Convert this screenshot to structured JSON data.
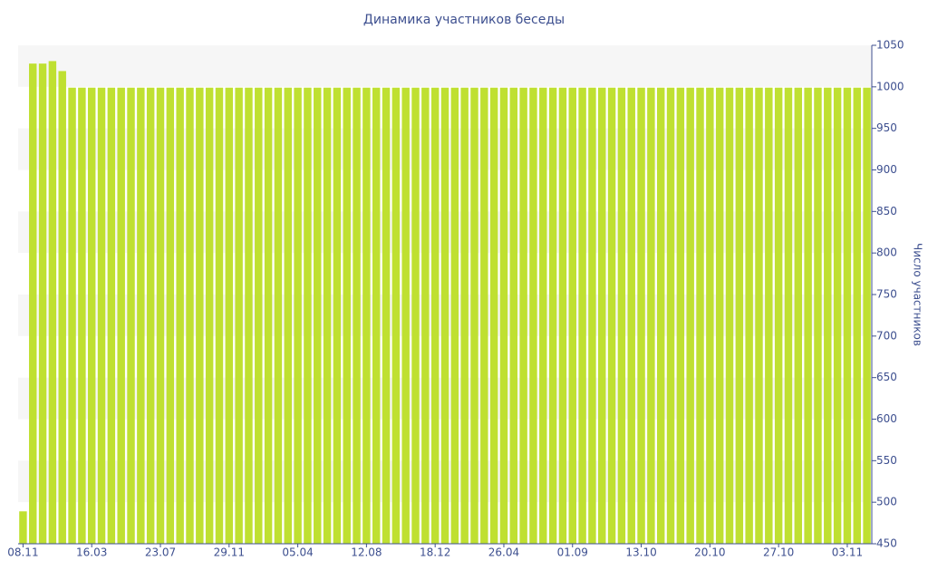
{
  "chart_data": {
    "type": "bar",
    "title": "Динамика участников беседы",
    "y_axis_label": "Число участников",
    "categories": [
      "08.11",
      null,
      null,
      null,
      null,
      null,
      null,
      "16.03",
      null,
      null,
      null,
      null,
      null,
      null,
      "23.07",
      null,
      null,
      null,
      null,
      null,
      null,
      "29.11",
      null,
      null,
      null,
      null,
      null,
      null,
      "05.04",
      null,
      null,
      null,
      null,
      null,
      null,
      "12.08",
      null,
      null,
      null,
      null,
      null,
      null,
      "18.12",
      null,
      null,
      null,
      null,
      null,
      null,
      "26.04",
      null,
      null,
      null,
      null,
      null,
      null,
      "01.09",
      null,
      null,
      null,
      null,
      null,
      null,
      "13.10",
      null,
      null,
      null,
      null,
      null,
      null,
      "20.10",
      null,
      null,
      null,
      null,
      null,
      null,
      "27.10",
      null,
      null,
      null,
      null,
      null,
      null,
      "03.11",
      null,
      null
    ],
    "values": [
      489,
      1028,
      1028,
      1031,
      1019,
      999,
      999,
      999,
      999,
      999,
      999,
      999,
      999,
      999,
      999,
      999,
      999,
      999,
      999,
      999,
      999,
      999,
      999,
      999,
      999,
      999,
      999,
      999,
      999,
      999,
      999,
      999,
      999,
      999,
      999,
      999,
      999,
      999,
      999,
      999,
      999,
      999,
      999,
      999,
      999,
      999,
      999,
      999,
      999,
      999,
      999,
      999,
      999,
      999,
      999,
      999,
      999,
      999,
      999,
      999,
      999,
      999,
      999,
      999,
      999,
      999,
      999,
      999,
      999,
      999,
      999,
      999,
      999,
      999,
      999,
      999,
      999,
      999,
      999,
      999,
      999,
      999,
      999,
      999,
      999,
      999,
      999
    ],
    "color": "#bfe031",
    "ylim": [
      450,
      1050
    ],
    "yticks": [
      450,
      500,
      550,
      600,
      650,
      700,
      750,
      800,
      850,
      900,
      950,
      1000,
      1050
    ],
    "y_axis_side": "right",
    "banded_grid": true
  }
}
